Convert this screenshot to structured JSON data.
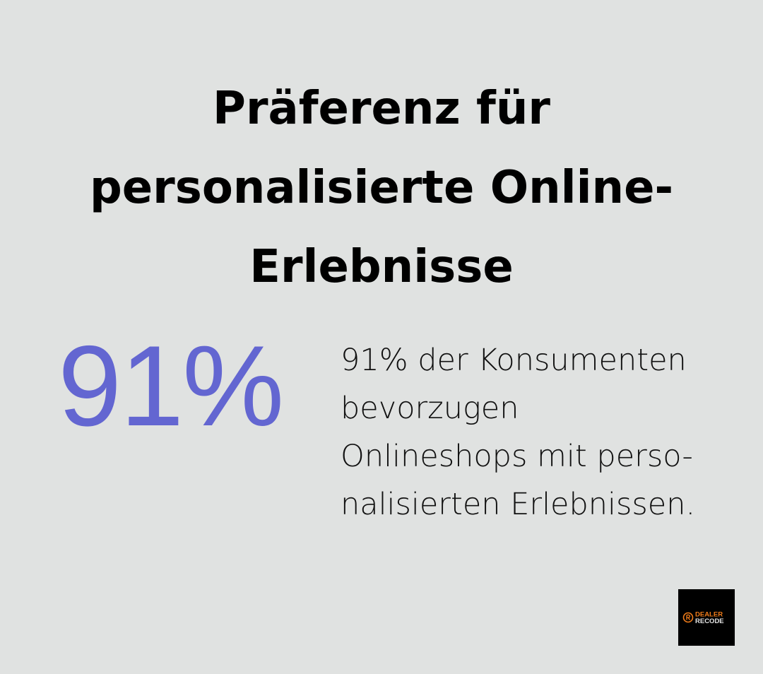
{
  "title": {
    "lines": [
      "Präferenz für",
      "personalisierte Online-",
      "Erlebnisse"
    ]
  },
  "stat": {
    "value": "91%",
    "color": "#6366d1"
  },
  "description": {
    "lines": [
      "91% der Konsumenten",
      "bevorzugen",
      "Onlineshops mit perso-",
      "nalisierten Erlebnissen."
    ]
  },
  "logo": {
    "line1": "DEALER",
    "line2": "RECODE",
    "accent": "#f07c1a"
  }
}
